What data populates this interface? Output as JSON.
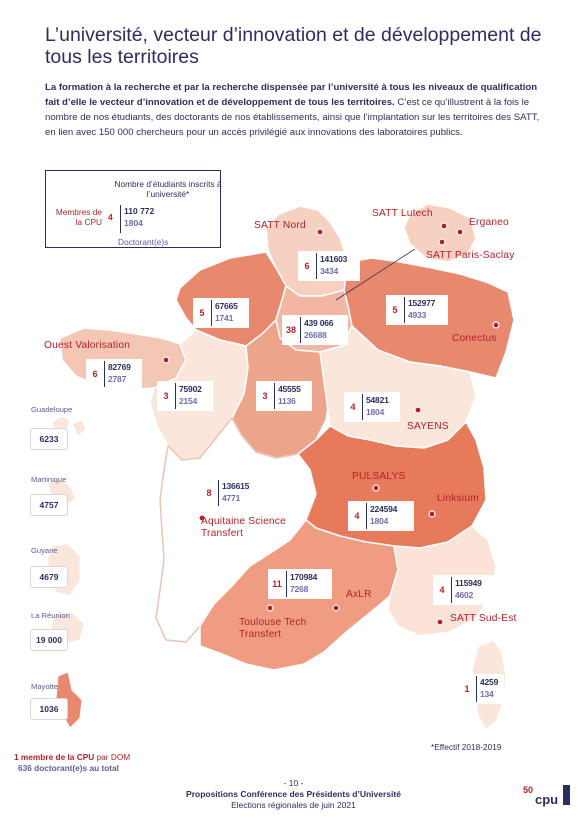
{
  "title": "L’université, vecteur d’innovation et de développement de tous les territoires",
  "intro": {
    "bold": "La formation à la recherche et par la recherche dispensée par l’université à tous les niveaux de qualification fait d’elle le vecteur d’innovation et de développement de tous les territoires.",
    "rest": " C’est ce qu’illustrent à la fois le nombre de nos étudiants, des doctorants de nos établissements, ainsi que l’implantation sur les territoires des SATT, en lien avec 150 000 chercheurs pour un accès privilégié aux innovations des laboratoires publics."
  },
  "legend": {
    "members_label": "Membres de la CPU",
    "members_value": "4",
    "students_label": "Nombre d’étudiants inscrits à l’université*",
    "students_value": "110 772",
    "doctorants_value": "1804",
    "doctorants_label": "Doctorant(e)s"
  },
  "regions": [
    {
      "name": "Hauts-de-France",
      "cpu": "6",
      "students": "141603",
      "doctorants": "3434",
      "fill": "#f6d0c0"
    },
    {
      "name": "Normandie",
      "cpu": "5",
      "students": "67665",
      "doctorants": "1741",
      "fill": "#e8896e"
    },
    {
      "name": "Ile-de-France",
      "cpu": "38",
      "students": "439 066",
      "doctorants": "26688",
      "fill": "#f1b7a2"
    },
    {
      "name": "Grand Est",
      "cpu": "5",
      "students": "152977",
      "doctorants": "4933",
      "fill": "#e8896e"
    },
    {
      "name": "Bretagne",
      "cpu": "6",
      "students": "82769",
      "doctorants": "2787",
      "fill": "#f4c7b5"
    },
    {
      "name": "Pays de la Loire",
      "cpu": "3",
      "students": "75902",
      "doctorants": "2154",
      "fill": "#fbe6dc"
    },
    {
      "name": "Centre-Val de Loire",
      "cpu": "3",
      "students": "45555",
      "doctorants": "1136",
      "fill": "#eca58a"
    },
    {
      "name": "Bourgogne-Franche-Comté",
      "cpu": "4",
      "students": "54821",
      "doctorants": "1804",
      "fill": "#fbe6dc"
    },
    {
      "name": "Nouvelle-Aquitaine",
      "cpu": "8",
      "students": "136615",
      "doctorants": "4771",
      "fill": "#ffffff"
    },
    {
      "name": "Auvergne-Rhône-Alpes",
      "cpu": "4",
      "students": "224594",
      "doctorants": "1804",
      "fill": "#e67a5b"
    },
    {
      "name": "Occitanie",
      "cpu": "11",
      "students": "170984",
      "doctorants": "7268",
      "fill": "#ef9c82"
    },
    {
      "name": "Provence-Alpes-Côte d’Azur",
      "cpu": "4",
      "students": "115949",
      "doctorants": "4602",
      "fill": "#fbe3d8"
    },
    {
      "name": "Corse",
      "cpu": "1",
      "students": "4259",
      "doctorants": "134",
      "fill": "#fbe6dc"
    }
  ],
  "overseas": [
    {
      "name": "Guadeloupe",
      "value": "6233"
    },
    {
      "name": "Martinique",
      "value": "4757"
    },
    {
      "name": "Guyane",
      "value": "4679"
    },
    {
      "name": "La Réunion",
      "value": "19 000"
    },
    {
      "name": "Mayotte",
      "value": "1036"
    }
  ],
  "satt": [
    {
      "name": "SATT Nord"
    },
    {
      "name": "SATT Lutech"
    },
    {
      "name": "Erganeo"
    },
    {
      "name": "SATT Paris-Saclay"
    },
    {
      "name": "Ouest Valorisation"
    },
    {
      "name": "Conectus"
    },
    {
      "name": "SAYENS"
    },
    {
      "name": "PULSALYS"
    },
    {
      "name": "Linksium"
    },
    {
      "name": "Aquitaine Science Transfert"
    },
    {
      "name": "AxLR"
    },
    {
      "name": "Toulouse Tech Transfert"
    },
    {
      "name": "SATT Sud-Est"
    }
  ],
  "dom_note": {
    "line1_red": "1 membre de la CPU",
    "line1_rest": " par DOM",
    "line2": "636 doctorant(e)s au total"
  },
  "footnote": "*Effectif 2018-2019",
  "footer": {
    "page": "- 10 -",
    "line1": "Propositions Conférence des Présidents d’Université",
    "line2": "Elections régionales de juin 2021"
  },
  "colors": {
    "primary": "#2b2f5f",
    "accent": "#b5212a"
  },
  "logo": {
    "text": "50 cpu",
    "name": "cpu-logo"
  }
}
